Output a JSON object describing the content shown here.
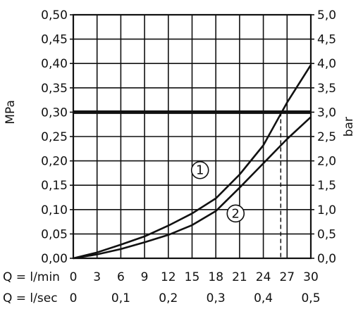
{
  "chart_data": {
    "type": "line",
    "title": "",
    "xlabel_lpm": "Q = l/min",
    "xlabel_lps": "Q = l/sec",
    "ylabel_left": "MPa",
    "ylabel_right": "bar",
    "xlim": [
      0,
      30
    ],
    "ylim": [
      0,
      0.5
    ],
    "grid": true,
    "x_ticks_lpm": [
      {
        "v": 0,
        "label": "0"
      },
      {
        "v": 3,
        "label": "3"
      },
      {
        "v": 6,
        "label": "6"
      },
      {
        "v": 9,
        "label": "9"
      },
      {
        "v": 12,
        "label": "12"
      },
      {
        "v": 15,
        "label": "15"
      },
      {
        "v": 18,
        "label": "18"
      },
      {
        "v": 21,
        "label": "21"
      },
      {
        "v": 24,
        "label": "24"
      },
      {
        "v": 27,
        "label": "27"
      },
      {
        "v": 30,
        "label": "30"
      }
    ],
    "x_ticks_lps": [
      {
        "v": 0,
        "label": "0"
      },
      {
        "v": 6,
        "label": "0,1"
      },
      {
        "v": 12,
        "label": "0,2"
      },
      {
        "v": 18,
        "label": "0,3"
      },
      {
        "v": 24,
        "label": "0,4"
      },
      {
        "v": 30,
        "label": "0,5"
      }
    ],
    "y_ticks_left": [
      {
        "v": 0,
        "label": "0,00"
      },
      {
        "v": 0.05,
        "label": "0,05"
      },
      {
        "v": 0.1,
        "label": "0,10"
      },
      {
        "v": 0.15,
        "label": "0,15"
      },
      {
        "v": 0.2,
        "label": "0,20"
      },
      {
        "v": 0.25,
        "label": "0,25"
      },
      {
        "v": 0.3,
        "label": "0,30"
      },
      {
        "v": 0.35,
        "label": "0,35"
      },
      {
        "v": 0.4,
        "label": "0,40"
      },
      {
        "v": 0.45,
        "label": "0,45"
      },
      {
        "v": 0.5,
        "label": "0,50"
      }
    ],
    "y_ticks_right": [
      {
        "v": 0,
        "label": "0,0"
      },
      {
        "v": 0.05,
        "label": "0,5"
      },
      {
        "v": 0.1,
        "label": "1,0"
      },
      {
        "v": 0.15,
        "label": "1,5"
      },
      {
        "v": 0.2,
        "label": "2,0"
      },
      {
        "v": 0.25,
        "label": "2,5"
      },
      {
        "v": 0.3,
        "label": "3,0"
      },
      {
        "v": 0.35,
        "label": "3,5"
      },
      {
        "v": 0.4,
        "label": "4,0"
      },
      {
        "v": 0.45,
        "label": "4,5"
      },
      {
        "v": 0.5,
        "label": "5,0"
      }
    ],
    "reference_line": {
      "y": 0.3
    },
    "marker_line": {
      "x": 26.2,
      "y": 0.3
    },
    "series": [
      {
        "label": "1",
        "x": [
          0,
          3,
          6,
          9,
          12,
          15,
          18,
          21,
          24,
          27,
          30
        ],
        "y": [
          0,
          0.012,
          0.028,
          0.045,
          0.067,
          0.092,
          0.123,
          0.172,
          0.232,
          0.32,
          0.397
        ],
        "label_at": {
          "x": 16,
          "y": 0.181
        }
      },
      {
        "label": "2",
        "x": [
          0,
          3,
          6,
          9,
          12,
          15,
          18,
          21,
          24,
          27,
          30
        ],
        "y": [
          0,
          0.008,
          0.019,
          0.033,
          0.048,
          0.068,
          0.097,
          0.145,
          0.195,
          0.245,
          0.29
        ],
        "label_at": {
          "x": 20.5,
          "y": 0.092
        }
      }
    ]
  }
}
